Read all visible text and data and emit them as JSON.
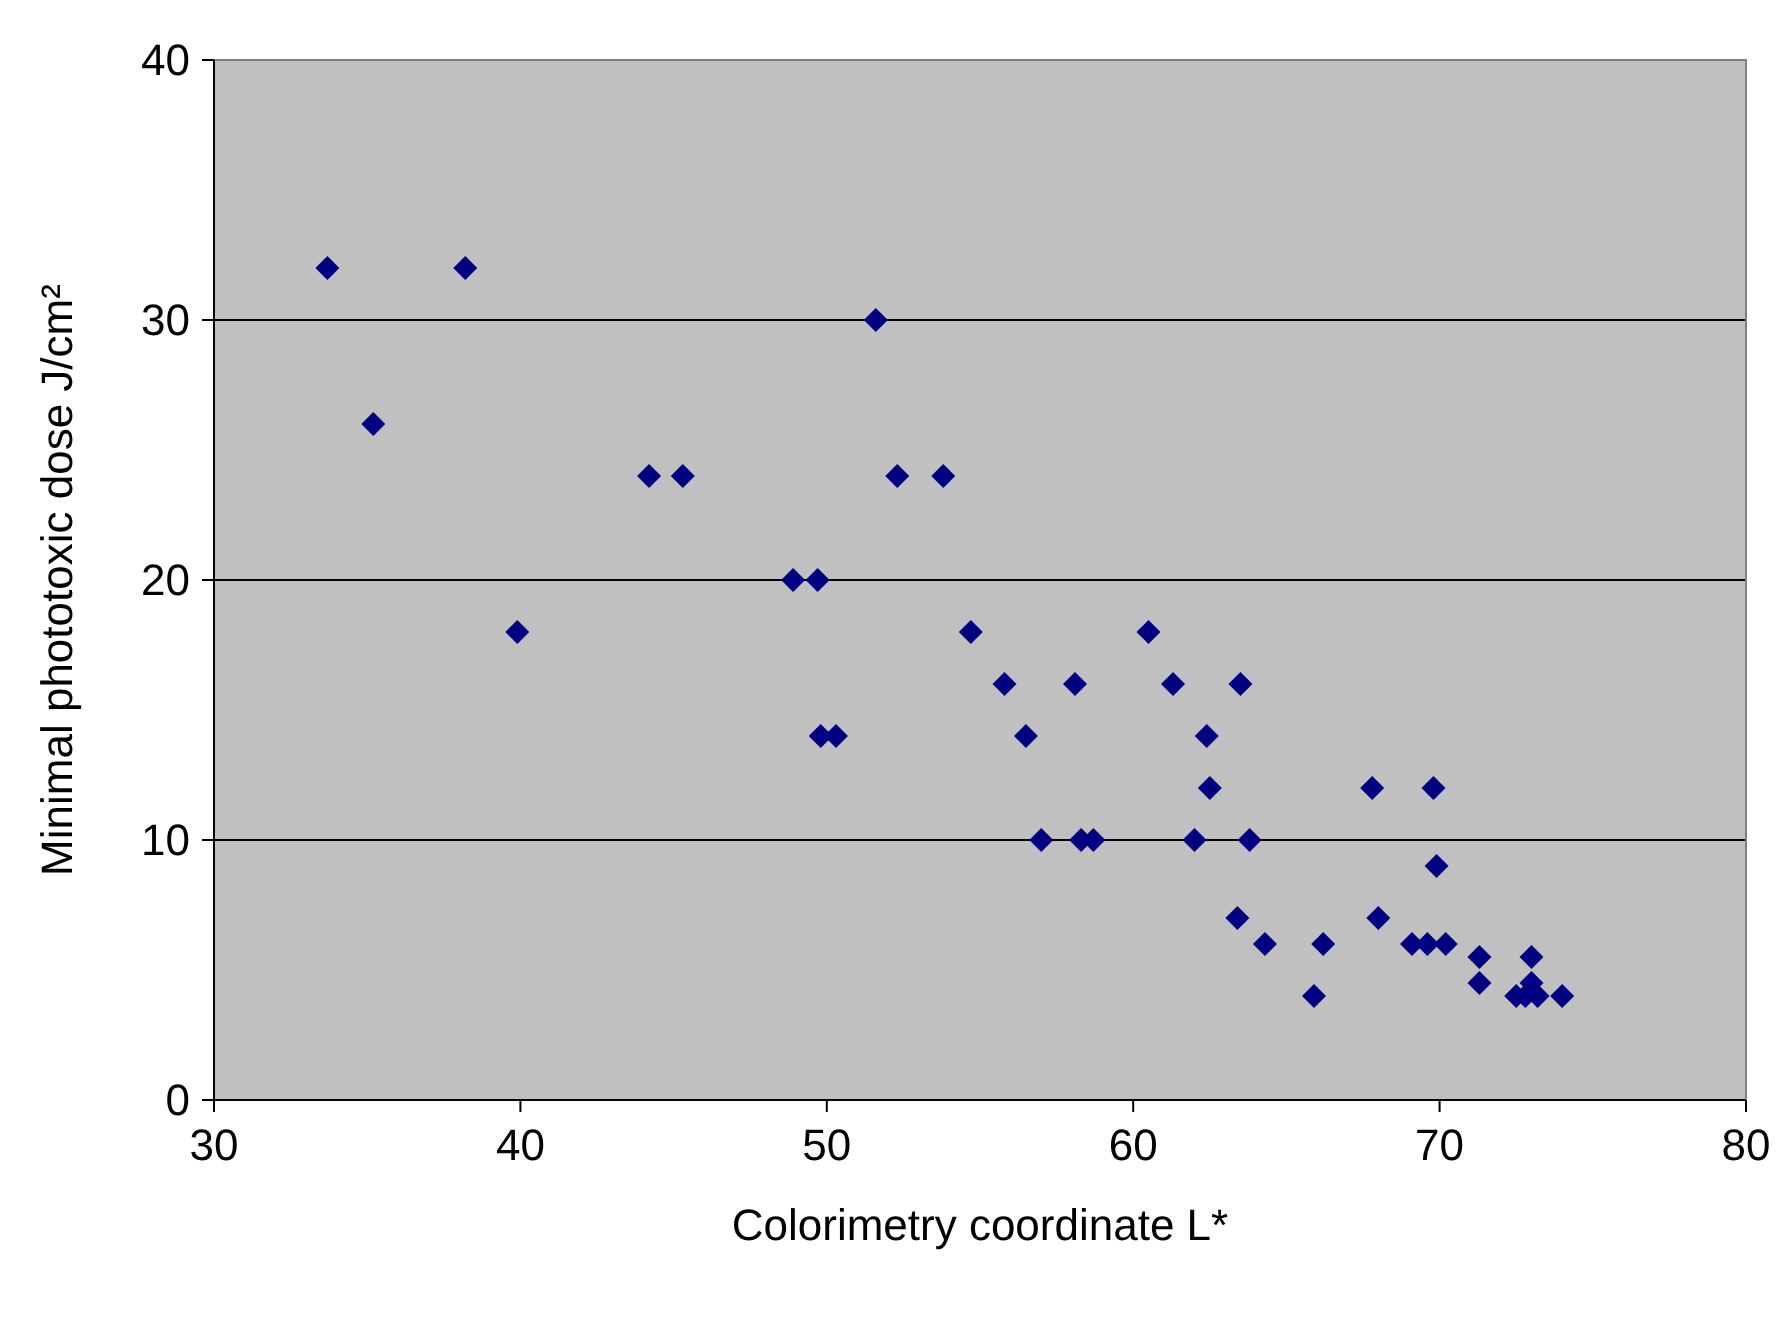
{
  "chart_data": {
    "type": "scatter",
    "xlabel": "Colorimetry coordinate L*",
    "ylabel": "Minimal phototoxic dose J/cm²",
    "xlim": [
      30,
      80
    ],
    "xticks": [
      30,
      40,
      50,
      60,
      70,
      80
    ],
    "ylim": [
      0,
      40
    ],
    "yticks": [
      0,
      10,
      20,
      30,
      40
    ],
    "grid": "y",
    "marker": "diamond",
    "series": [
      {
        "color": "#000080",
        "x": [
          33.7,
          35.2,
          38.2,
          39.9,
          44.2,
          45.3,
          48.9,
          49.7,
          49.8,
          50.3,
          51.6,
          52.3,
          53.8,
          54.7,
          55.8,
          56.5,
          57.0,
          58.1,
          58.3,
          58.7,
          60.5,
          61.3,
          62.0,
          62.4,
          62.5,
          63.5,
          63.4,
          63.8,
          64.3,
          65.9,
          66.2,
          67.8,
          68.0,
          69.1,
          69.8,
          69.9,
          69.6,
          70.2,
          71.3,
          71.3,
          72.5,
          72.8,
          73.0,
          73.0,
          73.2,
          74.0
        ],
        "values": [
          32,
          26,
          32,
          18,
          24,
          24,
          20,
          20,
          14,
          14,
          30,
          24,
          24,
          18,
          16,
          14,
          10,
          16,
          10,
          10,
          18,
          16,
          10,
          14,
          12,
          16,
          7,
          10,
          6,
          4,
          6,
          12,
          7,
          6,
          12,
          9,
          6,
          6,
          5.5,
          4.5,
          4,
          4,
          5.5,
          4.5,
          4,
          4
        ]
      }
    ]
  }
}
